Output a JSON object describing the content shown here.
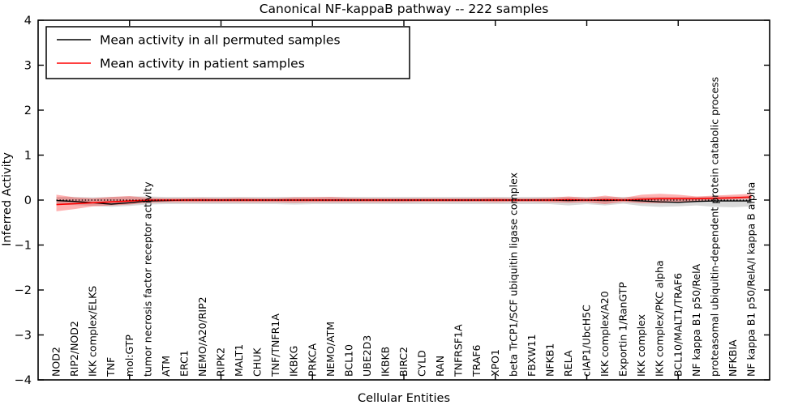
{
  "title": "Canonical NF-kappaB pathway -- 222 samples",
  "chart_data": {
    "type": "line",
    "title": "Canonical NF-kappaB pathway -- 222 samples",
    "xlabel": "Cellular Entities",
    "ylabel": "Inferred Activity",
    "ylim": [
      -4,
      4
    ],
    "yticks": [
      4,
      3,
      2,
      1,
      0,
      -1,
      -2,
      -3,
      -4
    ],
    "ytick_labels": [
      "4",
      "3",
      "2",
      "1",
      "0",
      "−1",
      "−2",
      "−3",
      "−4"
    ],
    "grid": false,
    "legend_position": "upper left",
    "frame_color": "#000000",
    "categories": [
      "NOD2",
      "RIP2/NOD2",
      "IKK complex/ELKS",
      "TNF",
      "mol:GTP",
      "tumor necrosis factor receptor activity",
      "ATM",
      "ERC1",
      "NEMO/A20/RIP2",
      "RIPK2",
      "MALT1",
      "CHUK",
      "TNF/TNFR1A",
      "IKBKG",
      "PRKCA",
      "NEMO/ATM",
      "BCL10",
      "UBE2D3",
      "IKBKB",
      "BIRC2",
      "CYLD",
      "RAN",
      "TNFRSF1A",
      "TRAF6",
      "XPO1",
      "beta TrCP1/SCF ubiquitin ligase complex",
      "FBXW11",
      "NFKB1",
      "RELA",
      "cIAP1/UbcH5C",
      "IKK complex/A20",
      "Exportin 1/RanGTP",
      "IKK complex",
      "IKK complex/PKC alpha",
      "BCL10/MALT1/TRAF6",
      "NF kappa B1 p50/RelA",
      "proteasomal ubiquitin-dependent protein catabolic process",
      "NFKBIA",
      "NF kappa B1 p50/RelA/I kappa B alpha"
    ],
    "series": [
      {
        "name": "Mean activity in all permuted samples",
        "color": "#000000",
        "style": "solid",
        "values": [
          -0.01,
          -0.03,
          -0.06,
          -0.09,
          -0.06,
          -0.02,
          -0.01,
          0,
          0,
          0,
          0,
          0,
          0,
          0,
          0,
          0,
          0,
          0,
          0,
          0,
          0,
          0,
          0,
          0,
          0,
          0,
          0,
          0,
          -0.01,
          0,
          -0.01,
          0,
          -0.02,
          -0.04,
          -0.05,
          -0.03,
          -0.02,
          -0.02,
          -0.02
        ]
      },
      {
        "name": "Mean activity in patient samples",
        "color": "#ff0000",
        "style": "solid",
        "values": [
          -0.1,
          -0.08,
          -0.06,
          -0.04,
          -0.02,
          0,
          0,
          0,
          0,
          0,
          0,
          0,
          0,
          0,
          0,
          0,
          0,
          0,
          0,
          0,
          0,
          0,
          0,
          0,
          0,
          0,
          0,
          0,
          0.01,
          0,
          0.01,
          0,
          0.02,
          0.03,
          0.03,
          0.03,
          0.04,
          0.05,
          0.07
        ]
      },
      {
        "name": "zero reference",
        "color": "#000000",
        "style": "dotted",
        "constant": 0
      }
    ],
    "bands": [
      {
        "name": "permuted samples std band",
        "color": "#888888",
        "opacity": 0.32,
        "upper": [
          0.07,
          0.07,
          0.06,
          0.07,
          0.08,
          0.08,
          0.07,
          0.07,
          0.07,
          0.07,
          0.07,
          0.07,
          0.07,
          0.07,
          0.07,
          0.07,
          0.07,
          0.07,
          0.07,
          0.07,
          0.07,
          0.07,
          0.07,
          0.07,
          0.07,
          0.07,
          0.07,
          0.07,
          0.07,
          0.07,
          0.07,
          0.07,
          0.07,
          0.07,
          0.07,
          0.07,
          0.08,
          0.08,
          0.08
        ],
        "lower": [
          -0.1,
          -0.11,
          -0.13,
          -0.15,
          -0.13,
          -0.1,
          -0.09,
          -0.09,
          -0.09,
          -0.09,
          -0.09,
          -0.09,
          -0.09,
          -0.1,
          -0.09,
          -0.09,
          -0.09,
          -0.09,
          -0.09,
          -0.09,
          -0.09,
          -0.09,
          -0.09,
          -0.09,
          -0.09,
          -0.09,
          -0.09,
          -0.09,
          -0.12,
          -0.09,
          -0.12,
          -0.08,
          -0.13,
          -0.15,
          -0.14,
          -0.12,
          -0.15,
          -0.16,
          -0.14
        ]
      },
      {
        "name": "patient samples std band",
        "color": "#ff0000",
        "opacity": 0.3,
        "upper": [
          0.12,
          0.06,
          0.04,
          0.07,
          0.09,
          0.05,
          0.04,
          0.04,
          0.05,
          0.04,
          0.05,
          0.04,
          0.04,
          0.06,
          0.06,
          0.07,
          0.05,
          0.04,
          0.04,
          0.04,
          0.04,
          0.04,
          0.04,
          0.04,
          0.05,
          0.04,
          0.04,
          0.05,
          0.08,
          0.05,
          0.1,
          0.05,
          0.12,
          0.14,
          0.12,
          0.08,
          0.1,
          0.12,
          0.14
        ],
        "lower": [
          -0.25,
          -0.2,
          -0.14,
          -0.12,
          -0.1,
          -0.06,
          -0.05,
          -0.05,
          -0.05,
          -0.05,
          -0.05,
          -0.05,
          -0.05,
          -0.06,
          -0.05,
          -0.05,
          -0.05,
          -0.05,
          -0.05,
          -0.05,
          -0.04,
          -0.04,
          -0.04,
          -0.04,
          -0.05,
          -0.04,
          -0.04,
          -0.05,
          -0.06,
          -0.05,
          -0.09,
          -0.04,
          -0.07,
          -0.07,
          -0.05,
          -0.02,
          0.0,
          0.01,
          0.02
        ]
      }
    ]
  }
}
